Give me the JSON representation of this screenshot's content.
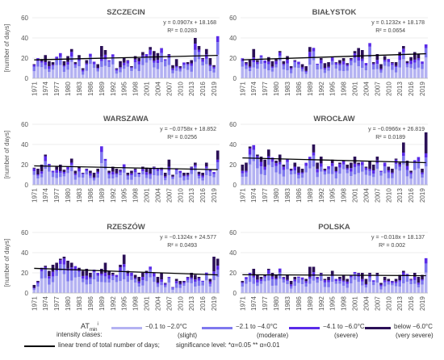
{
  "colors": {
    "slight": "#b4b2f2",
    "moderate": "#7e78ee",
    "severe": "#5a2be8",
    "very_severe": "#2b1057",
    "trend": "#000000",
    "grid": "#dddddd"
  },
  "chart_data": [
    {
      "type": "bar",
      "title": "SZCZECIN",
      "ylabel": "[number of days]",
      "ylim": [
        0,
        60
      ],
      "yticks": [
        "0",
        "20",
        "40",
        "60"
      ],
      "xticks": [
        "1971",
        "1974",
        "1977",
        "1980",
        "1983",
        "1986",
        "1989",
        "1992",
        "1995",
        "1998",
        "2001",
        "2004",
        "2007",
        "2010",
        "2013",
        "2016",
        "2019"
      ],
      "x_range": [
        1971,
        2020
      ],
      "totals": [
        14,
        18,
        19,
        23,
        17,
        16,
        20,
        24,
        17,
        22,
        29,
        16,
        23,
        10,
        18,
        24,
        16,
        14,
        32,
        28,
        18,
        22,
        10,
        17,
        20,
        18,
        12,
        22,
        20,
        26,
        24,
        31,
        27,
        25,
        30,
        18,
        24,
        13,
        19,
        12,
        15,
        16,
        18,
        40,
        32,
        20,
        29,
        20,
        13,
        38
      ],
      "trend": {
        "equation": "y = 0.0907x + 18.168",
        "r2": "R² = 0.0283",
        "slope": 0.0907,
        "intercept": 18.168
      },
      "grid": true
    },
    {
      "type": "bar",
      "title": "BIAŁYSTOK",
      "ylabel": "",
      "ylim": [
        0,
        60
      ],
      "yticks": [
        "0",
        "20",
        "40",
        "60"
      ],
      "xticks": [
        "1971",
        "1974",
        "1977",
        "1980",
        "1983",
        "1986",
        "1989",
        "1992",
        "1995",
        "1998",
        "2001",
        "2004",
        "2007",
        "2010",
        "2013",
        "2016",
        "2019"
      ],
      "x_range": [
        1971,
        2020
      ],
      "totals": [
        18,
        16,
        18,
        29,
        18,
        22,
        17,
        21,
        17,
        19,
        27,
        17,
        22,
        12,
        18,
        16,
        14,
        12,
        31,
        29,
        14,
        20,
        15,
        16,
        21,
        16,
        18,
        20,
        15,
        20,
        27,
        30,
        28,
        15,
        32,
        16,
        24,
        14,
        22,
        18,
        16,
        16,
        26,
        32,
        17,
        21,
        26,
        24,
        15,
        33
      ],
      "trend": {
        "equation": "y = 0.1232x + 18.178",
        "r2": "R² = 0.0654",
        "slope": 0.1232,
        "intercept": 18.178
      },
      "grid": true
    },
    {
      "type": "bar",
      "title": "WARSZAWA",
      "ylabel": "[number of days]",
      "ylim": [
        0,
        60
      ],
      "yticks": [
        "0",
        "20",
        "40",
        "60"
      ],
      "xticks": [
        "1971",
        "1974",
        "1977",
        "1980",
        "1983",
        "1986",
        "1989",
        "1992",
        "1995",
        "1998",
        "2001",
        "2004",
        "2007",
        "2010",
        "2013",
        "2016",
        "2019"
      ],
      "x_range": [
        1971,
        2020
      ],
      "totals": [
        17,
        16,
        20,
        30,
        20,
        14,
        18,
        20,
        15,
        18,
        26,
        14,
        18,
        12,
        16,
        14,
        12,
        16,
        35,
        25,
        14,
        18,
        16,
        15,
        20,
        12,
        14,
        16,
        12,
        18,
        17,
        16,
        18,
        14,
        17,
        12,
        25,
        10,
        16,
        14,
        12,
        12,
        18,
        22,
        13,
        12,
        22,
        14,
        12,
        34
      ],
      "trend": {
        "equation": "y = −0.0758x + 18.852",
        "r2": "R² = 0.0256",
        "slope": -0.0758,
        "intercept": 18.852
      },
      "grid": true
    },
    {
      "type": "bar",
      "title": "WROCŁAW",
      "ylabel": "",
      "ylim": [
        0,
        60
      ],
      "yticks": [
        "0",
        "20",
        "40",
        "60"
      ],
      "xticks": [
        "1971",
        "1974",
        "1977",
        "1980",
        "1983",
        "1986",
        "1989",
        "1992",
        "1995",
        "1998",
        "2001",
        "2004",
        "2007",
        "2010",
        "2013",
        "2016",
        "2019"
      ],
      "x_range": [
        1971,
        2020
      ],
      "totals": [
        20,
        22,
        38,
        36,
        30,
        28,
        25,
        35,
        27,
        24,
        30,
        20,
        26,
        16,
        22,
        18,
        16,
        20,
        26,
        40,
        22,
        28,
        16,
        18,
        25,
        18,
        22,
        24,
        20,
        22,
        28,
        22,
        20,
        18,
        24,
        20,
        28,
        14,
        22,
        18,
        16,
        26,
        22,
        42,
        24,
        14,
        24,
        26,
        16,
        52
      ],
      "trend": {
        "equation": "y = −0.0966x + 26.819",
        "r2": "R² = 0.0189",
        "slope": -0.0966,
        "intercept": 26.819
      },
      "grid": true
    },
    {
      "type": "bar",
      "title": "RZESZÓW",
      "ylabel": "[number of days]",
      "ylim": [
        0,
        60
      ],
      "yticks": [
        "0",
        "20",
        "40",
        "60"
      ],
      "xticks": [
        "1971",
        "1974",
        "1977",
        "1980",
        "1983",
        "1986",
        "1989",
        "1992",
        "1995",
        "1998",
        "2001",
        "2004",
        "2007",
        "2010",
        "2013",
        "2016",
        "2019"
      ],
      "x_range": [
        1971,
        2020
      ],
      "totals": [
        8,
        12,
        22,
        27,
        22,
        28,
        30,
        34,
        36,
        32,
        30,
        26,
        25,
        22,
        24,
        20,
        22,
        18,
        24,
        30,
        22,
        20,
        18,
        28,
        38,
        22,
        20,
        18,
        16,
        20,
        22,
        24,
        20,
        16,
        20,
        10,
        16,
        6,
        14,
        12,
        12,
        16,
        20,
        18,
        16,
        12,
        20,
        14,
        36,
        34
      ],
      "trend": {
        "equation": "y = −0.1324x + 24.577",
        "r2": "R² = 0.0493",
        "slope": -0.1324,
        "intercept": 24.577
      },
      "grid": true
    },
    {
      "type": "bar",
      "title": "POLSKA",
      "ylabel": "",
      "ylim": [
        0,
        60
      ],
      "yticks": [
        "0",
        "20",
        "40",
        "60"
      ],
      "xticks": [
        "1971",
        "1974",
        "1977",
        "1980",
        "1983",
        "1986",
        "1989",
        "1992",
        "1995",
        "1998",
        "2001",
        "2004",
        "2007",
        "2010",
        "2013",
        "2016",
        "2019"
      ],
      "x_range": [
        1971,
        2020
      ],
      "totals": [
        12,
        14,
        20,
        24,
        18,
        16,
        18,
        24,
        20,
        18,
        24,
        16,
        18,
        12,
        16,
        16,
        14,
        14,
        26,
        26,
        16,
        20,
        14,
        16,
        22,
        14,
        16,
        18,
        14,
        18,
        20,
        20,
        20,
        14,
        20,
        12,
        20,
        10,
        16,
        14,
        12,
        14,
        18,
        22,
        18,
        14,
        20,
        16,
        18,
        32
      ],
      "trend": {
        "equation": "y = −0.018x + 18.137",
        "r2": "R² = 0.002",
        "slope": -0.018,
        "intercept": 18.137
      },
      "grid": true
    }
  ],
  "legend": {
    "index_label": "AT",
    "index_sub": "min",
    "index_sup": "i",
    "intensity_label": "intensity clases:",
    "classes": [
      {
        "range": "−0.1 to −2.0°C",
        "name": "(slight)",
        "color_key": "slight"
      },
      {
        "range": "−2.1 to −4.0°C",
        "name": "(moderate)",
        "color_key": "moderate"
      },
      {
        "range": "−4.1 to −6.0°C",
        "name": "(severe)",
        "color_key": "severe"
      },
      {
        "range": "below −6.0°C",
        "name": "(very severe)",
        "color_key": "very_severe"
      }
    ],
    "trend_label": "linear trend of total number of days;",
    "significance_label": "significance level: *α=0.05  ** α=0.01"
  }
}
